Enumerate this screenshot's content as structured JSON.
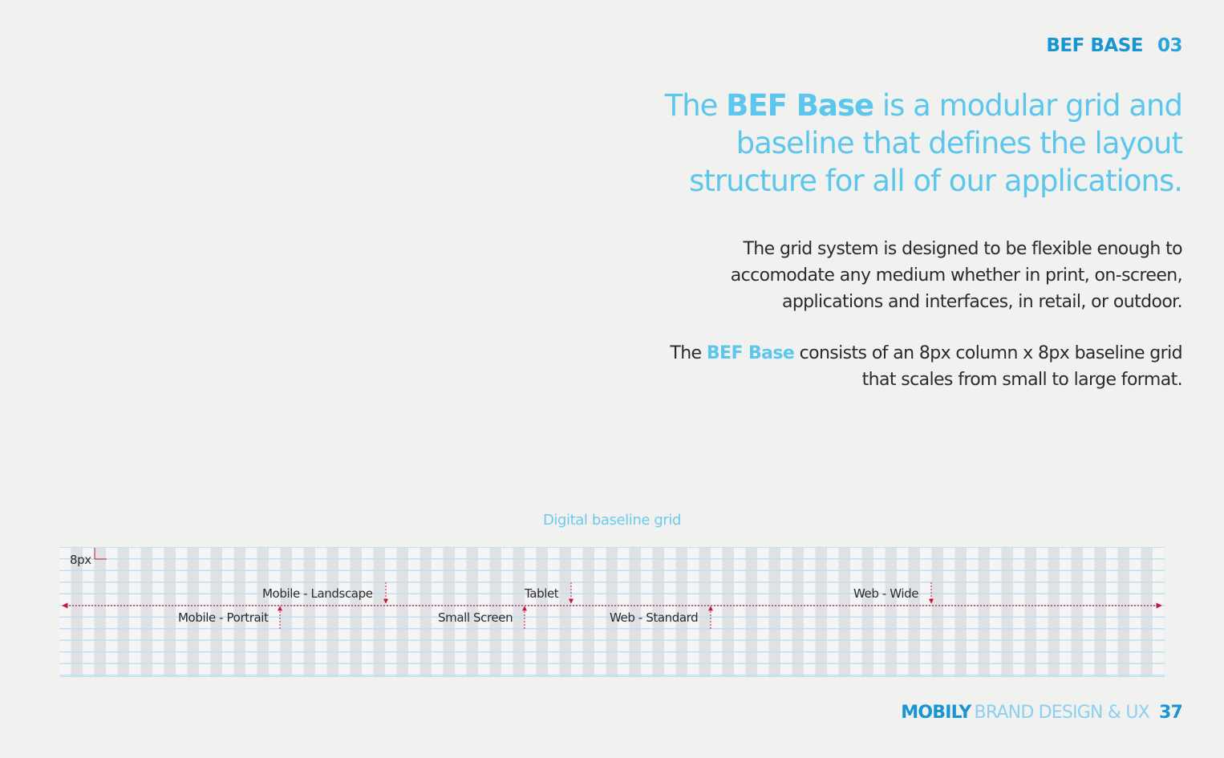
{
  "header": {
    "section_title": "BEF BASE",
    "section_number": "03"
  },
  "headline": {
    "prefix": "The ",
    "emphasis": "BEF Base",
    "line1_rest": " is a modular grid and",
    "line2": "baseline that defines the layout",
    "line3": "structure for all of our applications."
  },
  "body": {
    "p1_lines": [
      "The grid system is designed to be flexible enough to",
      "accomodate any medium whether in print, on-screen,",
      "applications and interfaces, in retail, or outdoor."
    ],
    "p2_prefix": "The ",
    "p2_emphasis": "BEF Base",
    "p2_rest": " consists of an 8px column x 8px baseline grid",
    "p2_line2": "that scales from small to large format."
  },
  "grid": {
    "caption": "Digital baseline grid",
    "unit_label": "8px",
    "breakpoints": {
      "mobile_landscape": "Mobile - Landscape",
      "mobile_portrait": "Mobile - Portrait",
      "small_screen": "Small Screen",
      "tablet": "Tablet",
      "web_standard": "Web - Standard",
      "web_wide": "Web - Wide"
    }
  },
  "footer": {
    "brand": "MOBILY",
    "subtitle": "BRAND DESIGN & UX",
    "page_number": "37"
  },
  "colors": {
    "accent_blue": "#1a95d3",
    "light_blue": "#5cc6ec",
    "marker_red": "#c8143c",
    "background": "#f1f1f0"
  }
}
